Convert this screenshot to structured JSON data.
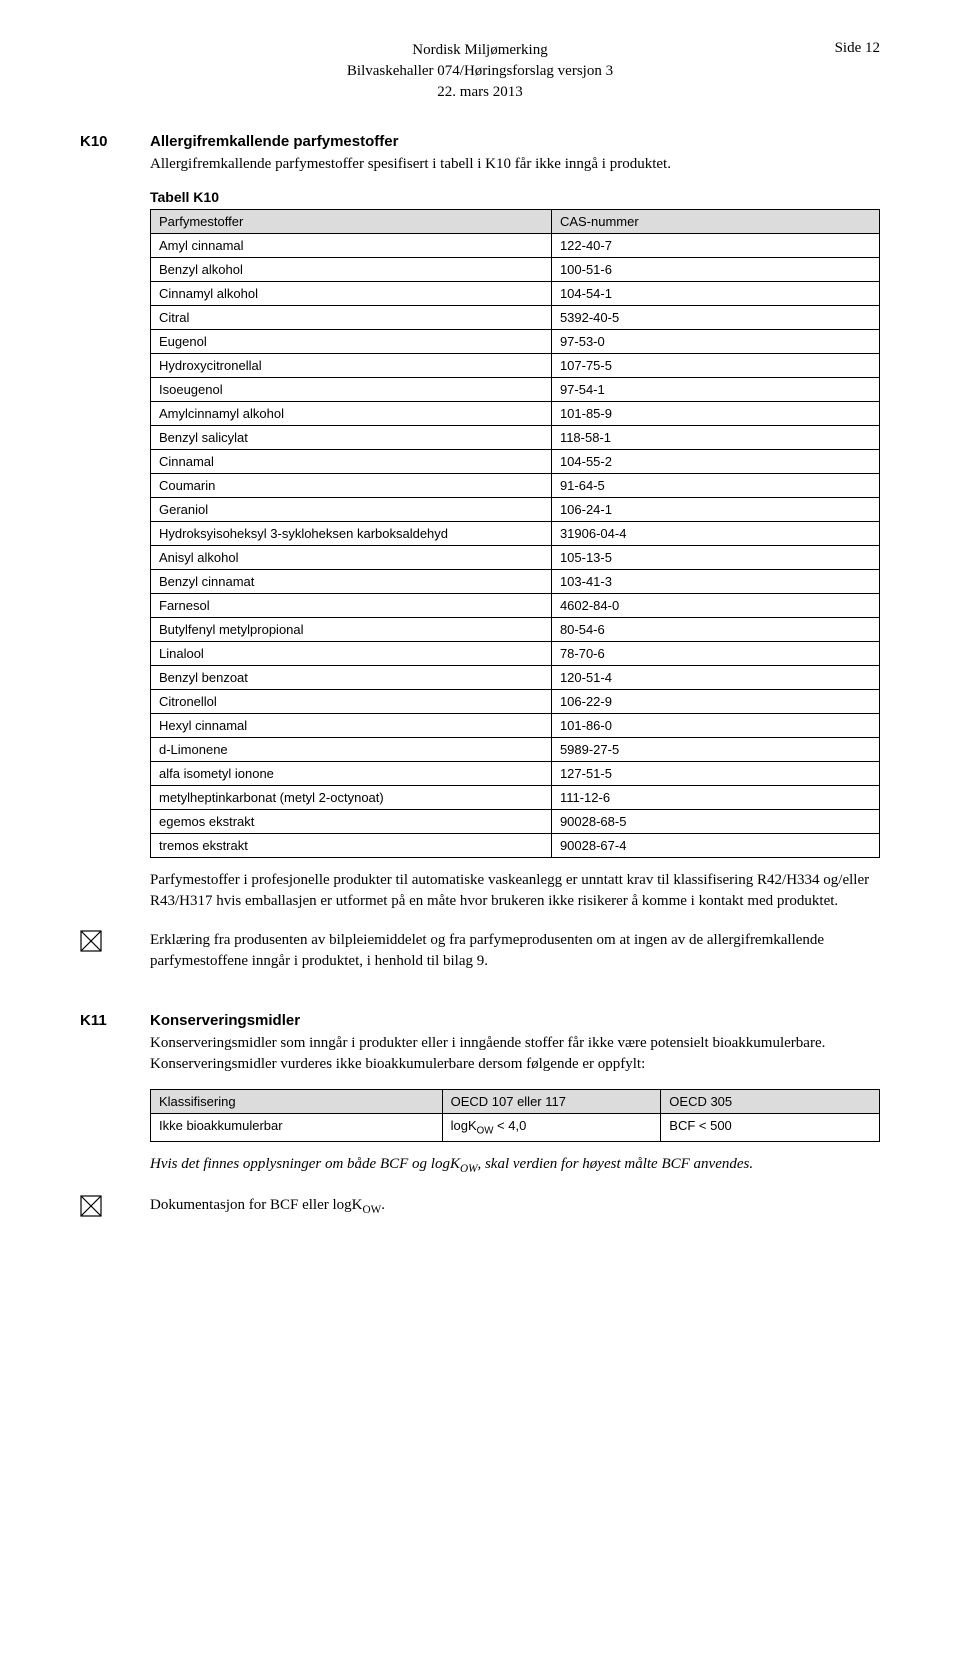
{
  "header": {
    "line1": "Nordisk Miljømerking",
    "line2": "Bilvaskehaller 074/Høringsforslag versjon 3",
    "line3": "22. mars 2013",
    "page": "Side 12"
  },
  "k10": {
    "label": "K10",
    "title": "Allergifremkallende parfymestoffer",
    "intro": "Allergifremkallende parfymestoffer spesifisert i tabell i K10 får ikke inngå i produktet.",
    "table_title": "Tabell K10",
    "columns": [
      "Parfymestoffer",
      "CAS-nummer"
    ],
    "rows": [
      [
        "Amyl cinnamal",
        "122-40-7"
      ],
      [
        "Benzyl alkohol",
        "100-51-6"
      ],
      [
        "Cinnamyl alkohol",
        "104-54-1"
      ],
      [
        "Citral",
        "5392-40-5"
      ],
      [
        "Eugenol",
        "97-53-0"
      ],
      [
        "Hydroxycitronellal",
        "107-75-5"
      ],
      [
        "Isoeugenol",
        "97-54-1"
      ],
      [
        "Amylcinnamyl alkohol",
        "101-85-9"
      ],
      [
        "Benzyl salicylat",
        "118-58-1"
      ],
      [
        "Cinnamal",
        "104-55-2"
      ],
      [
        "Coumarin",
        "91-64-5"
      ],
      [
        "Geraniol",
        "106-24-1"
      ],
      [
        "Hydroksyisoheksyl 3-sykloheksen karboksaldehyd",
        "31906-04-4"
      ],
      [
        "Anisyl alkohol",
        "105-13-5"
      ],
      [
        "Benzyl cinnamat",
        "103-41-3"
      ],
      [
        "Farnesol",
        "4602-84-0"
      ],
      [
        "Butylfenyl metylpropional",
        "80-54-6"
      ],
      [
        "Linalool",
        "78-70-6"
      ],
      [
        "Benzyl benzoat",
        "120-51-4"
      ],
      [
        "Citronellol",
        "106-22-9"
      ],
      [
        "Hexyl cinnamal",
        "101-86-0"
      ],
      [
        "d-Limonene",
        "5989-27-5"
      ],
      [
        "alfa isometyl ionone",
        "127-51-5"
      ],
      [
        "metylheptinkarbonat (metyl 2-octynoat)",
        "111-12-6"
      ],
      [
        "egemos ekstrakt",
        "90028-68-5"
      ],
      [
        "tremos ekstrakt",
        "90028-67-4"
      ]
    ],
    "para_after": "Parfymestoffer i profesjonelle produkter til automatiske vaskeanlegg er unntatt krav til klassifisering R42/H334 og/eller R43/H317 hvis emballasjen er utformet på en måte hvor brukeren ikke risikerer å komme i kontakt med produktet.",
    "check_text": "Erklæring fra produsenten av bilpleiemiddelet og fra parfymeprodusenten om at ingen av de allergifremkallende parfymestoffene inngår i produktet, i henhold til bilag 9."
  },
  "k11": {
    "label": "K11",
    "title": "Konserveringsmidler",
    "intro": "Konserveringsmidler som inngår i produkter eller i inngående stoffer får ikke være potensielt bioakkumulerbare. Konserveringsmidler vurderes ikke bioakkumulerbare dersom følgende er oppfylt:",
    "columns": [
      "Klassifisering",
      "OECD 107 eller 117",
      "OECD 305"
    ],
    "rows": [
      [
        "Ikke bioakkumulerbar",
        "logK_OW < 4,0",
        "BCF < 500"
      ]
    ],
    "note_prefix": "Hvis det finnes opplysninger om både BCF og logK",
    "note_sub1": "OW",
    "note_mid": ", skal verdien for høyest målte BCF anvendes.",
    "check_prefix": "Dokumentasjon for BCF eller logK",
    "check_sub": "OW",
    "check_suffix": "."
  }
}
